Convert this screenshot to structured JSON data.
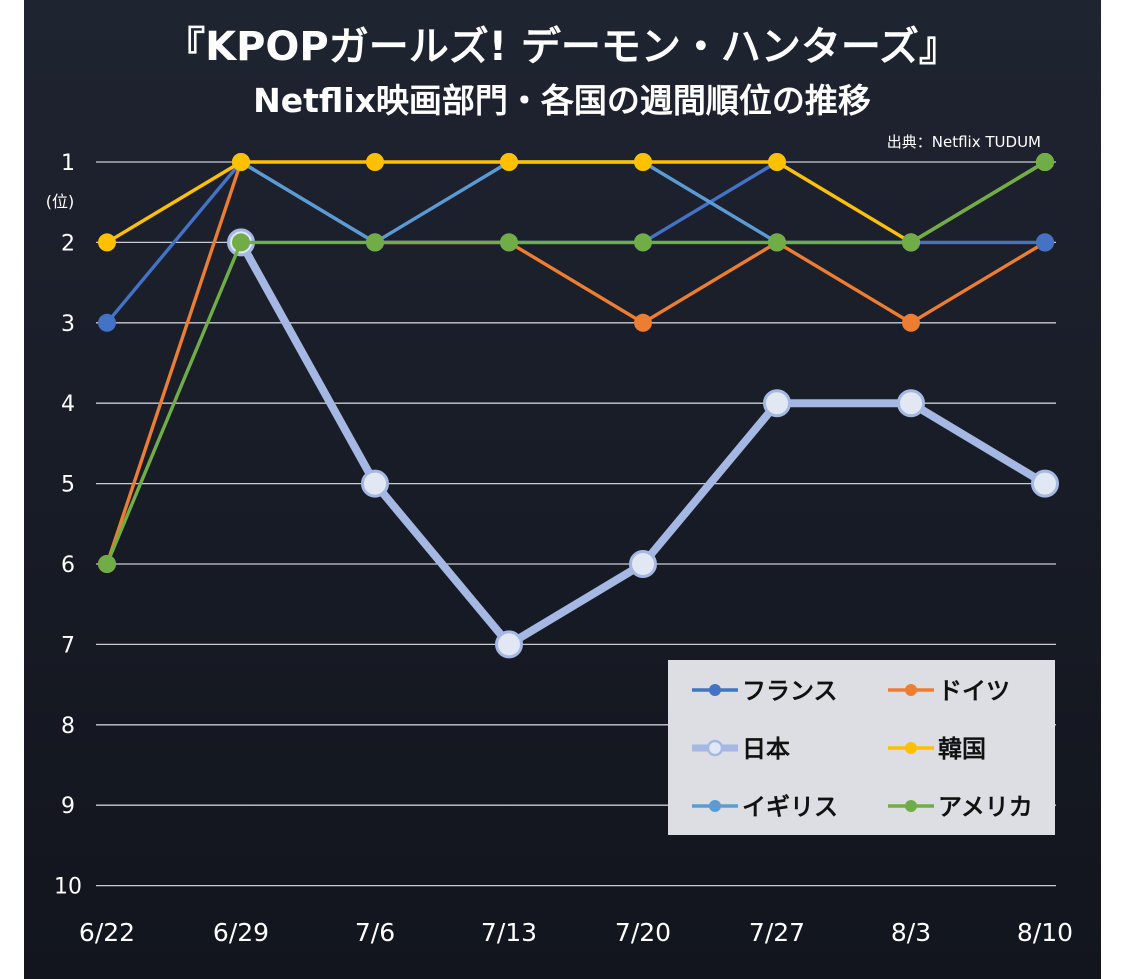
{
  "chart_data": {
    "type": "line",
    "title": "『KPOPガールズ! デーモン・ハンターズ』",
    "subtitle": "Netflix映画部門・各国の週間順位の推移",
    "source": "出典：Netflix TUDUM",
    "ylabel": "(位)",
    "ylim": [
      1,
      10
    ],
    "y_inverted": true,
    "yticks": [
      "1",
      "2",
      "3",
      "4",
      "5",
      "6",
      "7",
      "8",
      "9",
      "10"
    ],
    "categories": [
      "6/22",
      "6/29",
      "7/6",
      "7/13",
      "7/20",
      "7/27",
      "8/3",
      "8/10"
    ],
    "grid": true,
    "legend_position": "bottom-right",
    "series": [
      {
        "name": "フランス",
        "color": "#4472c4",
        "values": [
          3,
          1,
          2,
          2,
          2,
          1,
          2,
          2
        ]
      },
      {
        "name": "ドイツ",
        "color": "#ed7d31",
        "values": [
          6,
          1,
          2,
          2,
          3,
          2,
          3,
          2
        ]
      },
      {
        "name": "日本",
        "color": "#a5b8e3",
        "values": [
          null,
          2,
          5,
          7,
          6,
          4,
          4,
          5
        ]
      },
      {
        "name": "韓国",
        "color": "#ffc000",
        "values": [
          2,
          1,
          1,
          1,
          1,
          1,
          2,
          1
        ]
      },
      {
        "name": "イギリス",
        "color": "#5b9bd5",
        "values": [
          null,
          1,
          2,
          1,
          1,
          2,
          2,
          1
        ]
      },
      {
        "name": "アメリカ",
        "color": "#70ad47",
        "values": [
          6,
          2,
          2,
          2,
          2,
          2,
          2,
          1
        ]
      }
    ]
  }
}
